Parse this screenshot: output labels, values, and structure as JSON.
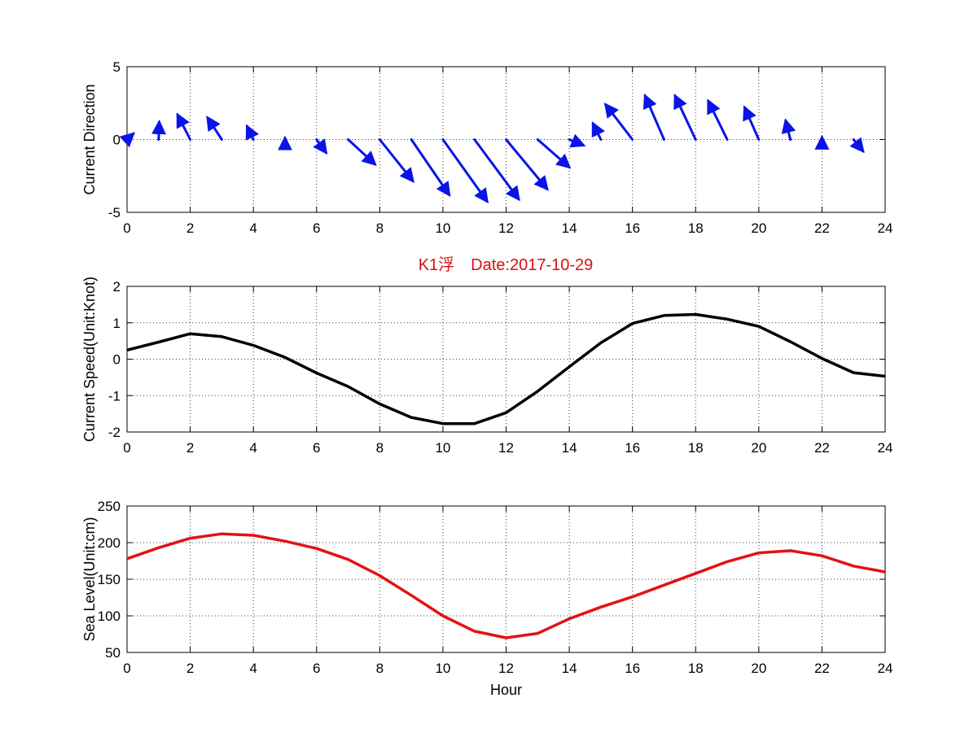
{
  "figure_title": "K1浮　Date:2017-10-29",
  "colors": {
    "arrows": "#0a14e6",
    "speed": "#000000",
    "sea_level": "#e31212",
    "title": "#d81010"
  },
  "chart_data": [
    {
      "type": "quiver",
      "ylabel": "Current Direction",
      "xlabel": "",
      "xlim": [
        0,
        24
      ],
      "ylim": [
        -5,
        5
      ],
      "xticks": [
        0,
        2,
        4,
        6,
        8,
        10,
        12,
        14,
        16,
        18,
        20,
        22,
        24
      ],
      "yticks": [
        -5,
        0,
        5
      ],
      "grid": true,
      "vectors": [
        {
          "x": 0,
          "u": 0.2,
          "v": 0.4
        },
        {
          "x": 1,
          "u": 0.02,
          "v": 1.2
        },
        {
          "x": 2,
          "u": -0.4,
          "v": 1.7
        },
        {
          "x": 3,
          "u": -0.45,
          "v": 1.5
        },
        {
          "x": 4,
          "u": -0.2,
          "v": 0.9
        },
        {
          "x": 5,
          "u": 0.0,
          "v": 0.1
        },
        {
          "x": 6,
          "u": 0.3,
          "v": -0.9
        },
        {
          "x": 7,
          "u": 0.85,
          "v": -1.7
        },
        {
          "x": 8,
          "u": 1.05,
          "v": -2.85
        },
        {
          "x": 9,
          "u": 1.2,
          "v": -3.8
        },
        {
          "x": 10,
          "u": 1.4,
          "v": -4.25
        },
        {
          "x": 11,
          "u": 1.4,
          "v": -4.1
        },
        {
          "x": 12,
          "u": 1.3,
          "v": -3.4
        },
        {
          "x": 13,
          "u": 1.0,
          "v": -1.9
        },
        {
          "x": 14,
          "u": 0.45,
          "v": -0.4
        },
        {
          "x": 15,
          "u": -0.25,
          "v": 1.1
        },
        {
          "x": 16,
          "u": -0.85,
          "v": 2.4
        },
        {
          "x": 17,
          "u": -0.6,
          "v": 3.0
        },
        {
          "x": 18,
          "u": -0.65,
          "v": 3.0
        },
        {
          "x": 19,
          "u": -0.6,
          "v": 2.65
        },
        {
          "x": 20,
          "u": -0.45,
          "v": 2.2
        },
        {
          "x": 21,
          "u": -0.15,
          "v": 1.3
        },
        {
          "x": 22,
          "u": 0.0,
          "v": 0.15
        },
        {
          "x": 23,
          "u": 0.3,
          "v": -0.8
        }
      ]
    },
    {
      "type": "line",
      "ylabel": "Current Speed(Unit:Knot)",
      "xlabel": "",
      "xlim": [
        0,
        24
      ],
      "ylim": [
        -2,
        2
      ],
      "xticks": [
        0,
        2,
        4,
        6,
        8,
        10,
        12,
        14,
        16,
        18,
        20,
        22,
        24
      ],
      "yticks": [
        -2,
        -1,
        0,
        1,
        2
      ],
      "grid": true,
      "series": [
        {
          "x": [
            0,
            1,
            2,
            3,
            4,
            5,
            6,
            7,
            8,
            9,
            10,
            11,
            12,
            13,
            14,
            15,
            16,
            17,
            18,
            19,
            20,
            21,
            22,
            23,
            24
          ],
          "values": [
            0.25,
            0.47,
            0.7,
            0.62,
            0.38,
            0.05,
            -0.38,
            -0.75,
            -1.23,
            -1.6,
            -1.77,
            -1.77,
            -1.47,
            -0.88,
            -0.21,
            0.45,
            0.98,
            1.2,
            1.23,
            1.1,
            0.9,
            0.48,
            0.02,
            -0.37,
            -0.47
          ]
        }
      ]
    },
    {
      "type": "line",
      "ylabel": "Sea Level(Unit:cm)",
      "xlabel": "Hour",
      "xlim": [
        0,
        24
      ],
      "ylim": [
        50,
        250
      ],
      "xticks": [
        0,
        2,
        4,
        6,
        8,
        10,
        12,
        14,
        16,
        18,
        20,
        22,
        24
      ],
      "yticks": [
        50,
        100,
        150,
        200,
        250
      ],
      "grid": true,
      "series": [
        {
          "x": [
            0,
            1,
            2,
            3,
            4,
            5,
            6,
            7,
            8,
            9,
            10,
            11,
            12,
            13,
            14,
            15,
            16,
            17,
            18,
            19,
            20,
            21,
            22,
            23,
            24
          ],
          "values": [
            178,
            193,
            206,
            212,
            210,
            202,
            192,
            177,
            155,
            128,
            100,
            79,
            70,
            76,
            96,
            112,
            126,
            142,
            158,
            174,
            186,
            189,
            182,
            168,
            160
          ]
        }
      ]
    }
  ]
}
